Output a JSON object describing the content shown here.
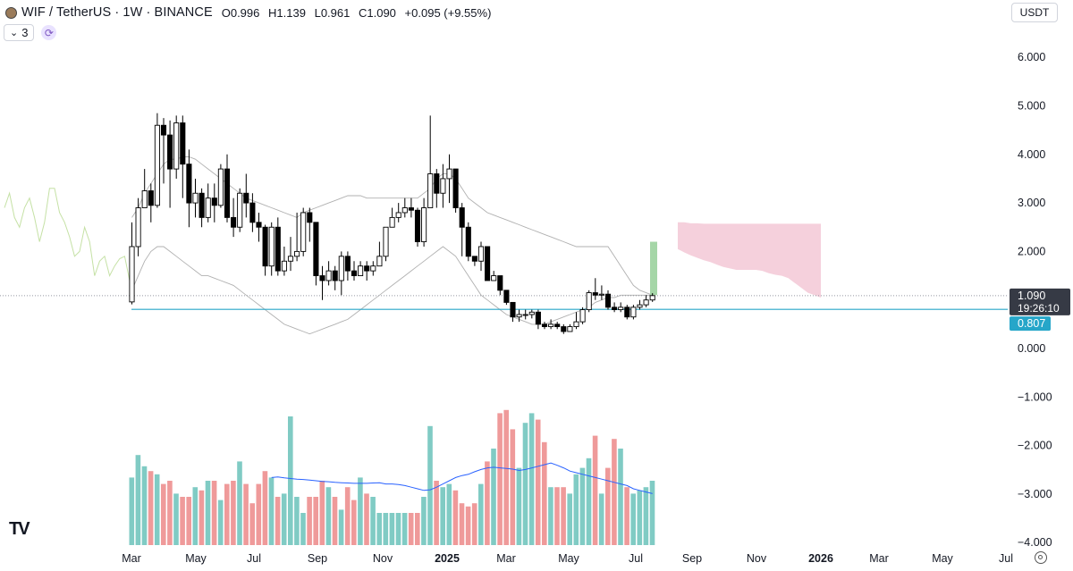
{
  "header": {
    "symbol": "WIF / TetherUS · 1W · BINANCE",
    "open_label": "O",
    "open": "0.996",
    "high_label": "H",
    "high": "1.139",
    "low_label": "L",
    "low": "0.961",
    "close_label": "C",
    "close": "1.090",
    "change": "+0.095 (+9.55%)"
  },
  "indicators_button": {
    "label": "3"
  },
  "currency_button": {
    "label": "USDT"
  },
  "colors": {
    "up": "#ffffff",
    "down": "#000000",
    "wick": "#000000",
    "vol_up": "#80cbc4",
    "vol_down": "#ef9a9a",
    "baseline": "#26a6c9",
    "lagging": "#c5e1a5",
    "bands": "#b0b0b0",
    "cloud": "#f3c4d3",
    "proj": "#a5d6a7",
    "vol_ma": "#2962ff",
    "price_tag_bg": "#363a45",
    "baseline_tag_bg": "#26a6c9"
  },
  "chart_data": {
    "type": "candlestick",
    "ylim": [
      -4.0,
      6.0
    ],
    "y_ticks": [
      "6.000",
      "5.000",
      "4.000",
      "3.000",
      "2.000",
      "1.000",
      "0.000",
      "−1.000",
      "−2.000",
      "−3.000",
      "−4.000"
    ],
    "x_tick_labels": [
      "Mar",
      "May",
      "Jul",
      "Sep",
      "Nov",
      "2025",
      "Mar",
      "May",
      "Jul",
      "Sep",
      "Nov",
      "2026",
      "Mar",
      "May",
      "Jul"
    ],
    "price_label": "1.090",
    "countdown_label": "19:26:10",
    "baseline_label": "0.807",
    "baseline_value": 0.807,
    "last_close": 1.09,
    "candles": [
      [
        0.96,
        2.1,
        2.6,
        0.91
      ],
      [
        2.1,
        2.9,
        3.1,
        1.9
      ],
      [
        2.9,
        3.25,
        3.7,
        2.9
      ],
      [
        3.25,
        2.95,
        3.4,
        2.6
      ],
      [
        2.95,
        4.6,
        4.85,
        2.9
      ],
      [
        4.6,
        4.4,
        4.75,
        3.4
      ],
      [
        4.4,
        3.7,
        4.7,
        2.9
      ],
      [
        3.7,
        4.65,
        4.8,
        3.5
      ],
      [
        4.65,
        3.8,
        4.8,
        3.1
      ],
      [
        3.8,
        3.0,
        4.1,
        2.5
      ],
      [
        3.0,
        3.2,
        3.5,
        2.7
      ],
      [
        3.2,
        2.7,
        3.3,
        2.5
      ],
      [
        2.7,
        3.1,
        3.4,
        2.6
      ],
      [
        3.1,
        2.95,
        3.4,
        2.6
      ],
      [
        2.95,
        3.7,
        3.8,
        2.9
      ],
      [
        3.7,
        2.7,
        4.0,
        2.6
      ],
      [
        2.7,
        2.5,
        3.1,
        2.3
      ],
      [
        2.5,
        3.2,
        3.3,
        2.4
      ],
      [
        3.2,
        3.0,
        3.6,
        2.7
      ],
      [
        3.0,
        2.6,
        3.2,
        2.4
      ],
      [
        2.6,
        2.5,
        2.8,
        2.2
      ],
      [
        2.5,
        1.7,
        2.55,
        1.5
      ],
      [
        1.7,
        2.5,
        2.6,
        1.5
      ],
      [
        2.5,
        1.6,
        2.7,
        1.5
      ],
      [
        1.6,
        1.8,
        2.1,
        1.5
      ],
      [
        1.8,
        1.9,
        2.3,
        1.6
      ],
      [
        1.9,
        2.0,
        2.8,
        1.8
      ],
      [
        2.0,
        2.8,
        2.9,
        1.9
      ],
      [
        2.8,
        2.6,
        2.9,
        2.2
      ],
      [
        2.6,
        1.5,
        2.6,
        1.3
      ],
      [
        1.5,
        1.4,
        1.7,
        1.0
      ],
      [
        1.4,
        1.6,
        1.8,
        1.3
      ],
      [
        1.6,
        1.4,
        1.7,
        1.2
      ],
      [
        1.4,
        1.9,
        2.0,
        1.1
      ],
      [
        1.9,
        1.6,
        2.0,
        1.4
      ],
      [
        1.6,
        1.5,
        1.8,
        1.4
      ],
      [
        1.5,
        1.7,
        1.8,
        1.5
      ],
      [
        1.7,
        1.6,
        1.8,
        1.4
      ],
      [
        1.6,
        1.7,
        1.8,
        1.5
      ],
      [
        1.7,
        1.9,
        2.2,
        1.7
      ],
      [
        1.9,
        2.5,
        2.5,
        1.8
      ],
      [
        2.5,
        2.7,
        2.9,
        2.5
      ],
      [
        2.7,
        2.8,
        3.0,
        2.6
      ],
      [
        2.8,
        2.9,
        3.1,
        2.7
      ],
      [
        2.9,
        2.85,
        3.1,
        2.7
      ],
      [
        2.85,
        2.2,
        2.9,
        2.1
      ],
      [
        2.2,
        2.9,
        3.1,
        2.1
      ],
      [
        2.9,
        3.6,
        4.8,
        2.9
      ],
      [
        3.6,
        3.2,
        3.7,
        2.9
      ],
      [
        3.2,
        3.5,
        3.8,
        2.9
      ],
      [
        3.5,
        3.7,
        4.0,
        3.0
      ],
      [
        3.7,
        2.9,
        3.7,
        2.8
      ],
      [
        2.9,
        2.5,
        3.0,
        1.9
      ],
      [
        2.5,
        1.9,
        2.6,
        1.8
      ],
      [
        1.9,
        1.8,
        1.9,
        1.7
      ],
      [
        1.8,
        2.1,
        2.2,
        1.6
      ],
      [
        2.1,
        1.4,
        2.1,
        1.4
      ],
      [
        1.4,
        1.5,
        1.6,
        1.4
      ],
      [
        1.5,
        1.2,
        1.5,
        1.1
      ],
      [
        1.2,
        0.95,
        1.1,
        0.9
      ],
      [
        0.95,
        0.65,
        0.95,
        0.55
      ],
      [
        0.65,
        0.7,
        0.8,
        0.55
      ],
      [
        0.7,
        0.7,
        0.8,
        0.6
      ],
      [
        0.7,
        0.75,
        0.8,
        0.62
      ],
      [
        0.75,
        0.5,
        0.8,
        0.4
      ],
      [
        0.5,
        0.45,
        0.55,
        0.4
      ],
      [
        0.45,
        0.5,
        0.6,
        0.4
      ],
      [
        0.5,
        0.45,
        0.55,
        0.4
      ],
      [
        0.45,
        0.35,
        0.5,
        0.3
      ],
      [
        0.35,
        0.45,
        0.5,
        0.35
      ],
      [
        0.45,
        0.55,
        0.75,
        0.4
      ],
      [
        0.55,
        0.8,
        0.85,
        0.5
      ],
      [
        0.8,
        1.15,
        1.2,
        0.75
      ],
      [
        1.15,
        1.1,
        1.45,
        1.0
      ],
      [
        1.1,
        1.12,
        1.3,
        1.0
      ],
      [
        1.12,
        0.85,
        1.2,
        0.8
      ],
      [
        0.85,
        0.8,
        0.95,
        0.75
      ],
      [
        0.8,
        0.85,
        0.95,
        0.75
      ],
      [
        0.85,
        0.65,
        0.9,
        0.6
      ],
      [
        0.65,
        0.85,
        0.9,
        0.6
      ],
      [
        0.85,
        0.9,
        1.0,
        0.8
      ],
      [
        0.9,
        1.0,
        1.1,
        0.85
      ],
      [
        1.0,
        1.09,
        1.14,
        0.96
      ]
    ],
    "volume_values": [
      2.1,
      2.8,
      2.45,
      2.3,
      2.2,
      1.9,
      2.0,
      1.6,
      1.5,
      1.5,
      1.8,
      1.7,
      2.0,
      2.0,
      1.4,
      1.9,
      2.0,
      2.6,
      1.9,
      1.3,
      1.9,
      2.3,
      2.1,
      1.5,
      1.6,
      4.0,
      1.5,
      1.0,
      1.5,
      1.5,
      2.0,
      1.8,
      1.5,
      1.1,
      1.8,
      1.4,
      2.1,
      1.6,
      1.5,
      1.0,
      1.0,
      1.0,
      1.0,
      1.0,
      1.0,
      1.0,
      1.5,
      3.7,
      2.0,
      1.8,
      1.9,
      1.7,
      1.3,
      1.2,
      1.3,
      1.9,
      2.6,
      3.0,
      4.1,
      4.2,
      3.6,
      2.4,
      3.8,
      4.1,
      3.9,
      3.2,
      1.8,
      1.8,
      1.8,
      1.6,
      2.2,
      2.4,
      2.7,
      3.4,
      1.6,
      2.4,
      3.3,
      3.0,
      1.8,
      1.6,
      1.7,
      1.8,
      2.0
    ],
    "volume_ma_start": 22,
    "volume_ma": [
      2.1,
      2.12,
      2.09,
      2.07,
      2.05,
      2.04,
      2.02,
      2.0,
      1.98,
      1.97,
      1.95,
      1.94,
      1.93,
      1.92,
      1.92,
      1.92,
      1.93,
      1.94,
      1.9,
      1.9,
      1.88,
      1.85,
      1.8,
      1.75,
      1.7,
      1.72,
      1.8,
      1.9,
      2.0,
      2.1,
      2.16,
      2.2,
      2.28,
      2.35,
      2.4,
      2.42,
      2.4,
      2.38,
      2.36,
      2.32,
      2.35,
      2.4,
      2.45,
      2.5,
      2.55,
      2.48,
      2.4,
      2.3,
      2.25,
      2.2,
      2.15,
      2.1,
      2.05,
      2.0,
      1.95,
      1.9,
      1.85,
      1.75,
      1.7,
      1.65,
      1.6
    ],
    "lagging_span_start": -8,
    "lagging_span": [
      2.9,
      3.2,
      2.7,
      2.5,
      2.9,
      3.1,
      2.7,
      2.2,
      2.6,
      3.3,
      3.3,
      2.8,
      2.6,
      2.3,
      1.9,
      2.0,
      2.5,
      2.2,
      1.5,
      1.8,
      1.9,
      1.5,
      1.7,
      1.85,
      1.9,
      1.4
    ],
    "upper_band_start": 0,
    "upper_band": [
      2.7,
      2.9,
      3.2,
      3.4,
      3.6,
      3.8,
      3.9,
      3.9,
      3.95,
      3.95,
      3.9,
      3.8,
      3.7,
      3.6,
      3.5,
      3.4,
      3.3,
      3.2,
      3.1,
      3.05,
      3.0,
      2.95,
      2.9,
      2.85,
      2.8,
      2.75,
      2.7,
      2.8,
      2.85,
      2.9,
      2.95,
      3.0,
      3.05,
      3.1,
      3.15,
      3.15,
      3.15,
      3.1,
      3.1,
      3.1,
      3.1,
      3.1,
      3.1,
      3.1,
      3.1,
      3.1,
      3.2,
      3.3,
      3.5,
      3.6,
      3.6,
      3.5,
      3.3,
      3.1,
      3.0,
      2.9,
      2.8,
      2.75,
      2.7,
      2.65,
      2.6,
      2.55,
      2.5,
      2.45,
      2.4,
      2.35,
      2.3,
      2.25,
      2.2,
      2.15,
      2.1,
      2.1,
      2.1,
      2.1,
      2.1,
      2.1,
      1.9,
      1.7,
      1.5,
      1.3,
      1.2,
      1.15,
      1.1
    ],
    "lower_band_start": 0,
    "lower_band": [
      1.2,
      1.5,
      1.8,
      2.0,
      2.1,
      2.1,
      2.0,
      1.9,
      1.8,
      1.7,
      1.6,
      1.5,
      1.5,
      1.45,
      1.4,
      1.35,
      1.3,
      1.2,
      1.1,
      1.0,
      0.9,
      0.8,
      0.7,
      0.6,
      0.5,
      0.45,
      0.4,
      0.35,
      0.3,
      0.35,
      0.4,
      0.45,
      0.5,
      0.55,
      0.6,
      0.7,
      0.8,
      0.9,
      1.0,
      1.1,
      1.2,
      1.3,
      1.4,
      1.5,
      1.6,
      1.7,
      1.8,
      1.9,
      2.0,
      2.1,
      2.0,
      1.9,
      1.7,
      1.5,
      1.3,
      1.1,
      1.0,
      0.9,
      0.8,
      0.7,
      0.65,
      0.6,
      0.55,
      0.5,
      0.5,
      0.5,
      0.55,
      0.6,
      0.65,
      0.7,
      0.75,
      0.8,
      0.85,
      0.95,
      1.0,
      1.05,
      1.05,
      1.1,
      1.1,
      1.1,
      1.1,
      1.1,
      1.1
    ],
    "projection": {
      "index": 84,
      "top": 2.2,
      "bottom": 1.1
    },
    "cloud_start": 88,
    "cloud_top": [
      2.6,
      2.6,
      2.58,
      2.58,
      2.57,
      2.57,
      2.57,
      2.57,
      2.57,
      2.57,
      2.57,
      2.57,
      2.57,
      2.57,
      2.57,
      2.57,
      2.57,
      2.57,
      2.57,
      2.57,
      2.57,
      2.57,
      2.57
    ],
    "cloud_bottom": [
      2.05,
      1.98,
      1.92,
      1.87,
      1.82,
      1.78,
      1.73,
      1.68,
      1.65,
      1.62,
      1.62,
      1.62,
      1.62,
      1.6,
      1.55,
      1.52,
      1.5,
      1.45,
      1.35,
      1.25,
      1.15,
      1.1,
      1.05
    ]
  }
}
